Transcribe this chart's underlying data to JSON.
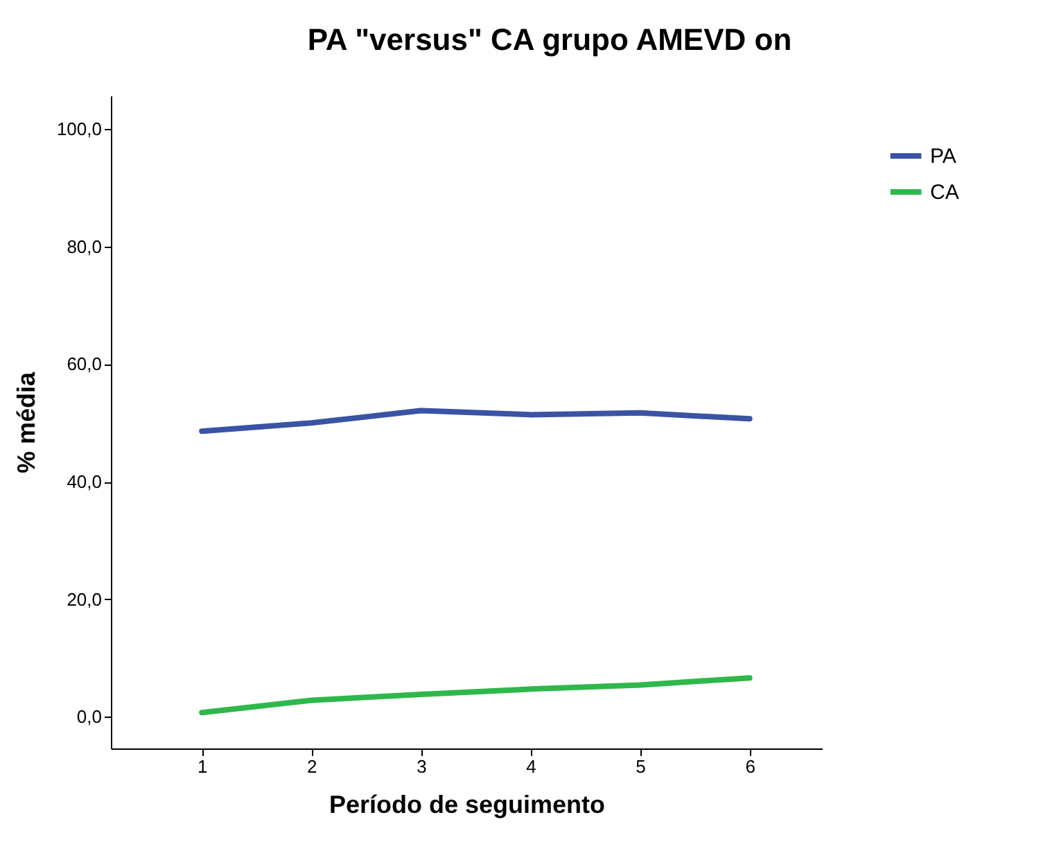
{
  "chart_data": {
    "type": "line",
    "title": "PA \"versus\" CA grupo AMEVD on",
    "xlabel": "Período de seguimento",
    "ylabel": "% média",
    "categories": [
      "1",
      "2",
      "3",
      "4",
      "5",
      "6"
    ],
    "series": [
      {
        "name": "PA",
        "color": "#3a53a4",
        "values": [
          48.6,
          50.0,
          52.1,
          51.4,
          51.7,
          50.7
        ]
      },
      {
        "name": "CA",
        "color": "#2eb84b",
        "values": [
          0.7,
          2.8,
          3.8,
          4.7,
          5.4,
          6.6
        ]
      }
    ],
    "ylim": [
      -5.4,
      105.7
    ],
    "yticks": [
      {
        "value": 0,
        "label": "0,0"
      },
      {
        "value": 20,
        "label": "20,0"
      },
      {
        "value": 40,
        "label": "40,0"
      },
      {
        "value": 60,
        "label": "60,0"
      },
      {
        "value": 80,
        "label": "80,0"
      },
      {
        "value": 100,
        "label": "100,0"
      }
    ],
    "grid": false,
    "legend": "top right",
    "marker": "none",
    "line_style": "solid"
  }
}
